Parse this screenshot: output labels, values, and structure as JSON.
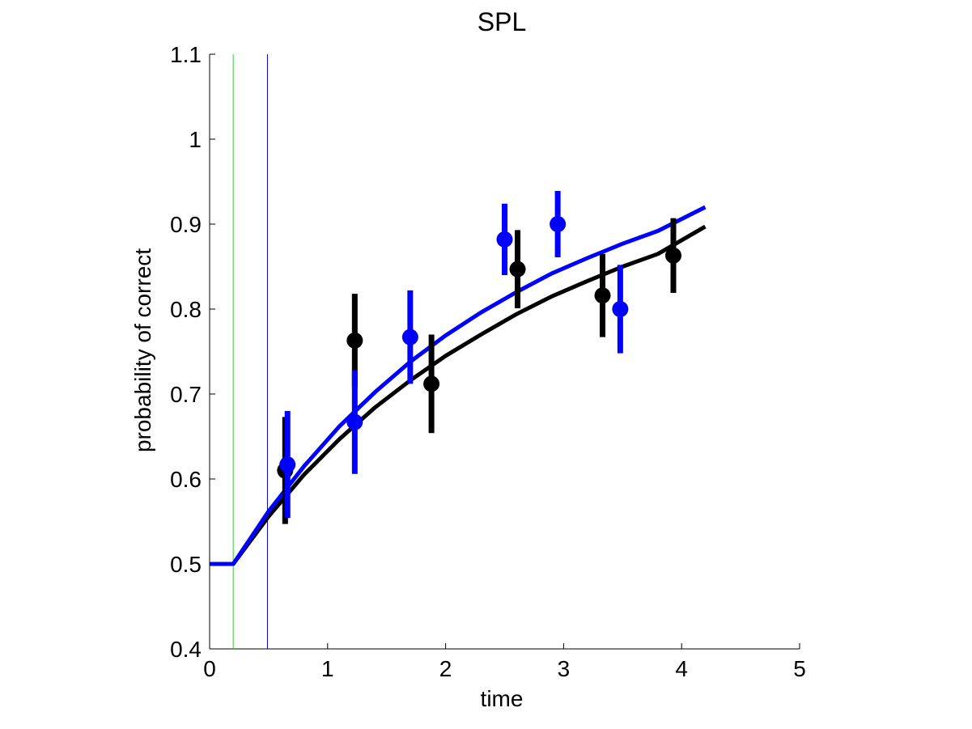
{
  "chart_data": {
    "type": "line",
    "title": "SPL",
    "xlabel": "time",
    "ylabel": "probability of correct",
    "xlim": [
      0,
      5
    ],
    "ylim": [
      0.4,
      1.1
    ],
    "xticks": [
      0,
      1,
      2,
      3,
      4,
      5
    ],
    "yticks": [
      0.4,
      0.5,
      0.6,
      0.7,
      0.8,
      0.9,
      1,
      1.1
    ],
    "xtick_labels": [
      "0",
      "1",
      "2",
      "3",
      "4",
      "5"
    ],
    "ytick_labels": [
      "0.4",
      "0.5",
      "0.6",
      "0.7",
      "0.8",
      "0.9",
      "1",
      "1.1"
    ],
    "grid": false,
    "vertical_lines": [
      {
        "x": 0.2,
        "color": "#33cc33"
      },
      {
        "x": 0.49,
        "color": "#0000cc"
      }
    ],
    "fits": [
      {
        "color": "#000000",
        "x": [
          0.0,
          0.2,
          0.5,
          0.8,
          1.1,
          1.4,
          1.7,
          2.0,
          2.3,
          2.6,
          2.9,
          3.2,
          3.5,
          3.8,
          4.2
        ],
        "y": [
          0.5,
          0.5,
          0.556,
          0.605,
          0.647,
          0.684,
          0.716,
          0.745,
          0.77,
          0.794,
          0.815,
          0.833,
          0.85,
          0.865,
          0.897
        ]
      },
      {
        "color": "#0000ff",
        "x": [
          0.0,
          0.2,
          0.5,
          0.8,
          1.1,
          1.4,
          1.7,
          2.0,
          2.3,
          2.6,
          2.9,
          3.2,
          3.5,
          3.8,
          4.2
        ],
        "y": [
          0.5,
          0.5,
          0.562,
          0.615,
          0.662,
          0.702,
          0.738,
          0.769,
          0.796,
          0.82,
          0.842,
          0.86,
          0.877,
          0.892,
          0.92
        ]
      }
    ],
    "series": [
      {
        "color": "#000000",
        "points": [
          {
            "x": 0.64,
            "y": 0.61,
            "err": 0.063
          },
          {
            "x": 1.23,
            "y": 0.763,
            "err": 0.055
          },
          {
            "x": 1.88,
            "y": 0.712,
            "err": 0.058
          },
          {
            "x": 2.61,
            "y": 0.847,
            "err": 0.046
          },
          {
            "x": 3.33,
            "y": 0.816,
            "err": 0.049
          },
          {
            "x": 3.93,
            "y": 0.863,
            "err": 0.044
          }
        ]
      },
      {
        "color": "#0000ff",
        "points": [
          {
            "x": 0.66,
            "y": 0.617,
            "err": 0.063
          },
          {
            "x": 1.23,
            "y": 0.667,
            "err": 0.061
          },
          {
            "x": 1.7,
            "y": 0.767,
            "err": 0.055
          },
          {
            "x": 2.5,
            "y": 0.882,
            "err": 0.042
          },
          {
            "x": 2.95,
            "y": 0.9,
            "err": 0.039
          },
          {
            "x": 3.48,
            "y": 0.8,
            "err": 0.052
          }
        ]
      }
    ]
  }
}
